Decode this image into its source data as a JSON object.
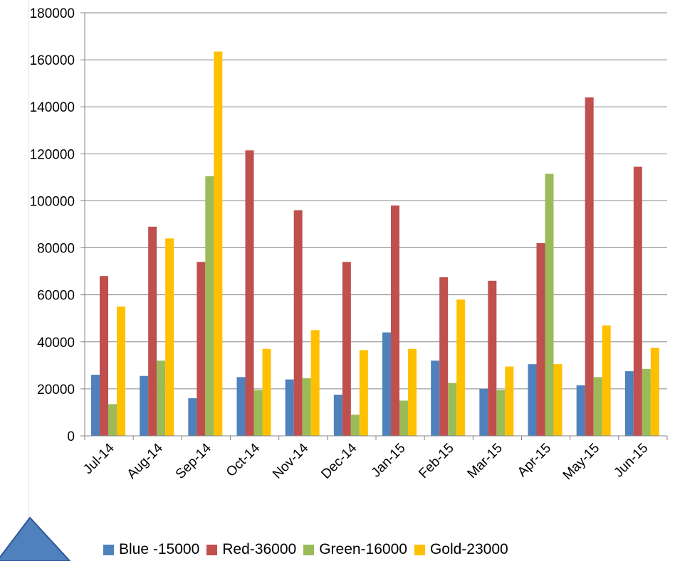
{
  "chart_data": {
    "type": "bar",
    "categories": [
      "Jul-14",
      "Aug-14",
      "Sep-14",
      "Oct-14",
      "Nov-14",
      "Dec-14",
      "Jan-15",
      "Feb-15",
      "Mar-15",
      "Apr-15",
      "May-15",
      "Jun-15"
    ],
    "series": [
      {
        "name": "Blue -15000",
        "color": "#4f81bd",
        "values": [
          26000,
          25500,
          16000,
          25000,
          24000,
          17500,
          44000,
          32000,
          20000,
          30500,
          21500,
          27500
        ]
      },
      {
        "name": "Red-36000",
        "color": "#c0504d",
        "values": [
          68000,
          89000,
          74000,
          121500,
          96000,
          74000,
          98000,
          67500,
          66000,
          82000,
          144000,
          114500
        ]
      },
      {
        "name": "Green-16000",
        "color": "#9bbb59",
        "values": [
          13500,
          32000,
          110500,
          19500,
          24500,
          9000,
          15000,
          22500,
          19500,
          111500,
          25000,
          28500
        ]
      },
      {
        "name": "Gold-23000",
        "color": "#ffc000",
        "values": [
          55000,
          84000,
          163500,
          37000,
          45000,
          36500,
          37000,
          58000,
          29500,
          30500,
          47000,
          37500
        ]
      }
    ],
    "yticks": [
      "0",
      "20000",
      "40000",
      "60000",
      "80000",
      "100000",
      "120000",
      "140000",
      "160000",
      "180000"
    ],
    "ylim": [
      0,
      180000
    ],
    "grid": true,
    "legend": "bottom"
  }
}
